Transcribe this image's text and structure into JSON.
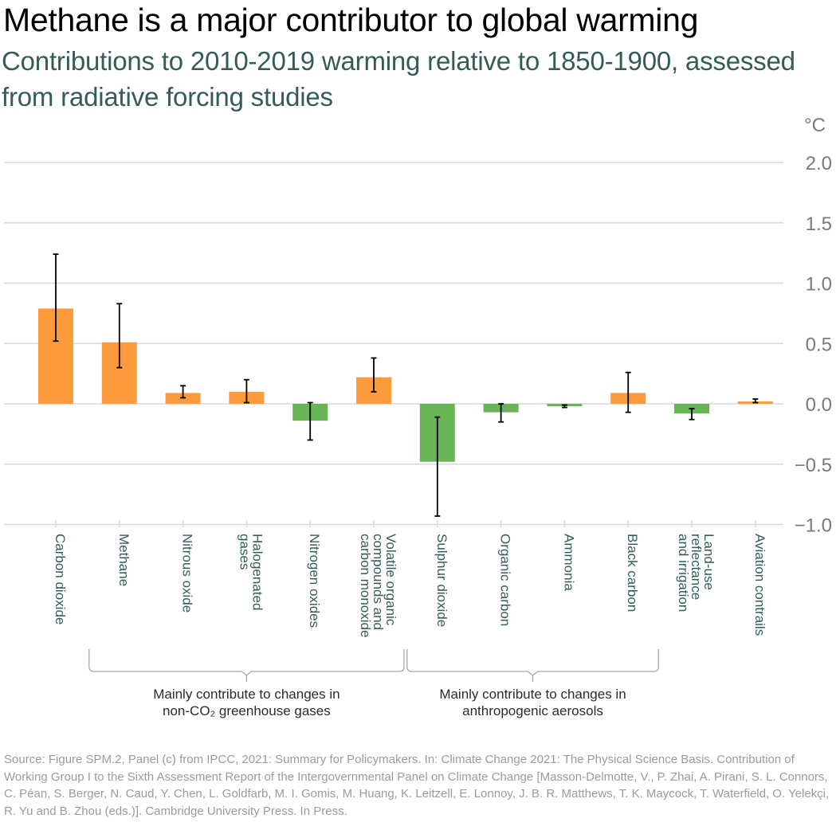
{
  "title": "Methane is a major contributor to global warming",
  "subtitle": "Contributions to 2010-2019 warming relative to 1850-1900, assessed from radiative forcing studies",
  "unit_label": "°C",
  "colors": {
    "warming": "#ff9a3d",
    "cooling": "#69b456",
    "grid": "#d9d9d9",
    "error_bar": "#000000"
  },
  "chart_data": {
    "type": "bar",
    "title": "Methane is a major contributor to global warming",
    "subtitle": "Contributions to 2010-2019 warming relative to 1850-1900, assessed from radiative forcing studies",
    "xlabel": "",
    "ylabel": "°C",
    "ylim": [
      -1.0,
      2.0
    ],
    "yticks": [
      2.0,
      1.5,
      1.0,
      0.5,
      0.0,
      -0.5,
      -1.0
    ],
    "ytick_labels": [
      "2.0",
      "1.5",
      "1.0",
      "0.5",
      "0.0",
      "−0.5",
      "−1.0"
    ],
    "grid": true,
    "y_axis_position": "right",
    "categories": [
      [
        "Carbon dioxide"
      ],
      [
        "Methane"
      ],
      [
        "Nitrous oxide"
      ],
      [
        "Halogenated",
        "gases"
      ],
      [
        "Nitrogen oxides"
      ],
      [
        "Volatile organic",
        "compounds and",
        "carbon monoxide"
      ],
      [
        "Sulphur dioxide"
      ],
      [
        "Organic carbon"
      ],
      [
        "Ammonia"
      ],
      [
        "Black carbon"
      ],
      [
        "Land-use",
        "reflectance",
        "and irrigation"
      ],
      [
        "Aviation contrails"
      ]
    ],
    "values": [
      0.79,
      0.51,
      0.09,
      0.1,
      -0.14,
      0.22,
      -0.48,
      -0.07,
      -0.02,
      0.09,
      -0.08,
      0.02
    ],
    "error_low": [
      0.52,
      0.3,
      0.05,
      0.01,
      -0.3,
      0.1,
      -0.93,
      -0.15,
      -0.03,
      -0.07,
      -0.13,
      0.01
    ],
    "error_high": [
      1.24,
      0.83,
      0.15,
      0.2,
      0.01,
      0.38,
      -0.11,
      0.0,
      -0.01,
      0.26,
      -0.04,
      0.04
    ],
    "groups": [
      {
        "label_lines": [
          "Mainly contribute to changes in",
          "non-CO₂ greenhouse gases"
        ],
        "from_index": 1,
        "to_index": 5
      },
      {
        "label_lines": [
          "Mainly contribute to changes in",
          "anthropogenic aerosols"
        ],
        "from_index": 6,
        "to_index": 9
      }
    ]
  },
  "source_text": "Source: Figure SPM.2, Panel (c) from IPCC, 2021: Summary for Policymakers. In: Climate Change 2021: The Physical Science Basis. Contribution of Working Group I to the Sixth Assessment Report of the Intergovernmental Panel on Climate Change [Masson-Delmotte, V., P. Zhai, A. Pirani, S. L. Connors, C. Péan, S. Berger, N. Caud, Y. Chen, L. Goldfarb, M. I. Gomis, M. Huang, K. Leitzell, E. Lonnoy, J. B. R. Matthews, T. K. Maycock, T. Waterfield, O. Yelekçi, R. Yu and B. Zhou (eds.)]. Cambridge University Press. In Press."
}
